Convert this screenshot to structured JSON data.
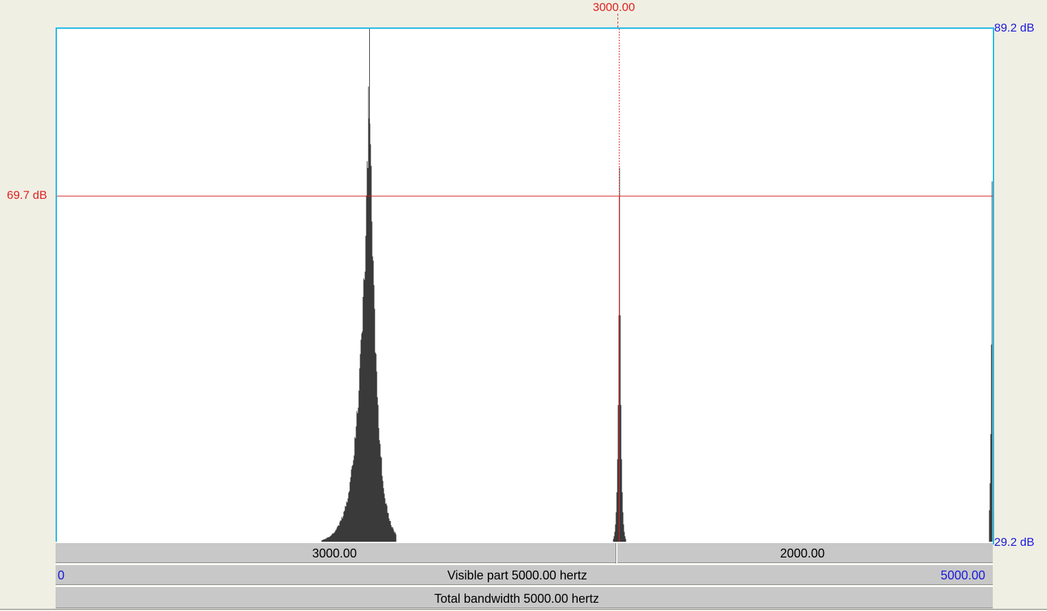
{
  "cursor": {
    "frequency_label": "3000.00",
    "db_label": "69.7 dB",
    "color": "#e02020"
  },
  "axis": {
    "db_max": "89.2 dB",
    "db_min": "29.2 dB",
    "freq_start": "0",
    "freq_end": "5000.00",
    "color": "#1a1adc"
  },
  "segments": {
    "left_label": "3000.00",
    "right_label": "2000.00"
  },
  "bars": {
    "visible_part": "Visible part 5000.00 hertz",
    "total_bandwidth": "Total bandwidth 5000.00 hertz"
  },
  "spectrum": {
    "peaks": [
      {
        "freq": 1670,
        "db": 89.2,
        "width": 520
      },
      {
        "freq": 4985,
        "db": 73.0,
        "width": 45
      },
      {
        "freq": 4995,
        "db": 71.4,
        "width": 20
      }
    ],
    "db_range": [
      29.2,
      89.2
    ],
    "freq_range": [
      0,
      5000
    ]
  }
}
